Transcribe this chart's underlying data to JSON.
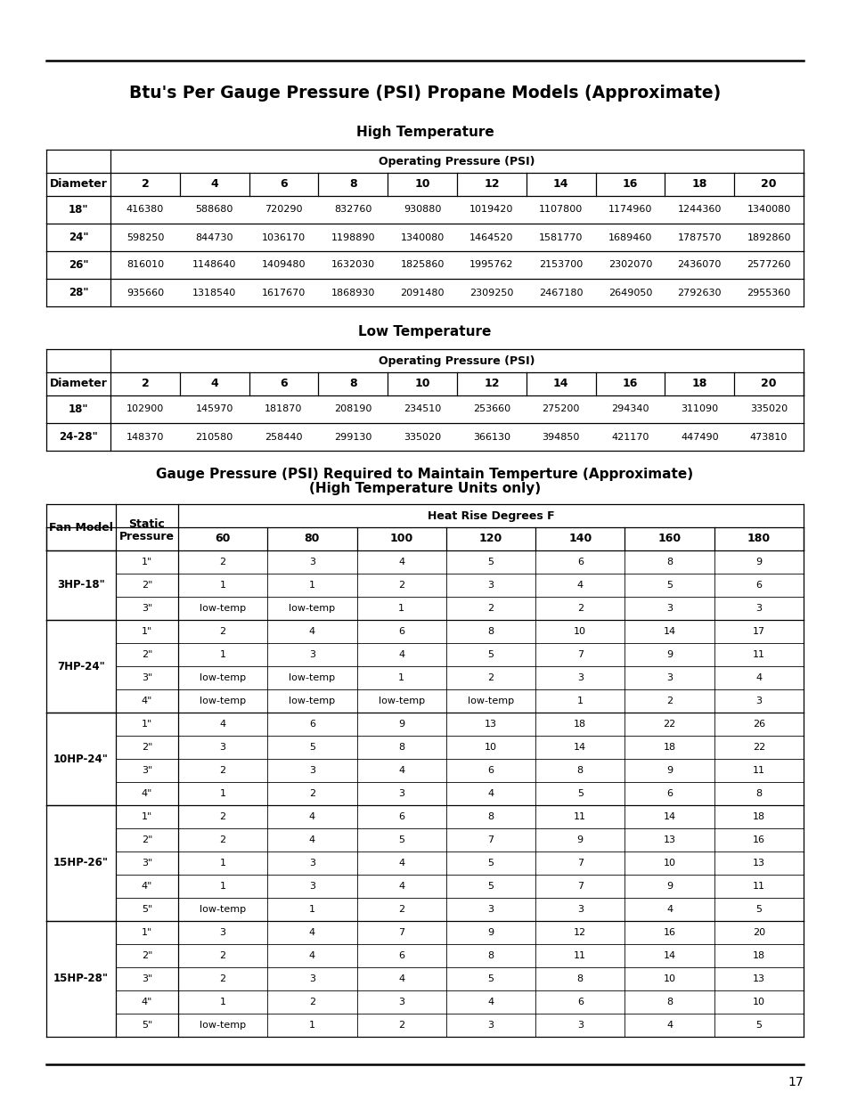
{
  "title": "Btu's Per Gauge Pressure (PSI) Propane Models (Approximate)",
  "section1_title": "High Temperature",
  "table1_header1": "Operating Pressure (PSI)",
  "table1_col0": "Diameter",
  "table1_cols": [
    "2",
    "4",
    "6",
    "8",
    "10",
    "12",
    "14",
    "16",
    "18",
    "20"
  ],
  "table1_rows": [
    [
      "18\"",
      "416380",
      "588680",
      "720290",
      "832760",
      "930880",
      "1019420",
      "1107800",
      "1174960",
      "1244360",
      "1340080"
    ],
    [
      "24\"",
      "598250",
      "844730",
      "1036170",
      "1198890",
      "1340080",
      "1464520",
      "1581770",
      "1689460",
      "1787570",
      "1892860"
    ],
    [
      "26\"",
      "816010",
      "1148640",
      "1409480",
      "1632030",
      "1825860",
      "1995762",
      "2153700",
      "2302070",
      "2436070",
      "2577260"
    ],
    [
      "28\"",
      "935660",
      "1318540",
      "1617670",
      "1868930",
      "2091480",
      "2309250",
      "2467180",
      "2649050",
      "2792630",
      "2955360"
    ]
  ],
  "section2_title": "Low Temperature",
  "table2_header1": "Operating Pressure (PSI)",
  "table2_col0": "Diameter",
  "table2_cols": [
    "2",
    "4",
    "6",
    "8",
    "10",
    "12",
    "14",
    "16",
    "18",
    "20"
  ],
  "table2_rows": [
    [
      "18\"",
      "102900",
      "145970",
      "181870",
      "208190",
      "234510",
      "253660",
      "275200",
      "294340",
      "311090",
      "335020"
    ],
    [
      "24-28\"",
      "148370",
      "210580",
      "258440",
      "299130",
      "335020",
      "366130",
      "394850",
      "421170",
      "447490",
      "473810"
    ]
  ],
  "section3_title_line1": "Gauge Pressure (PSI) Required to Maintain Temperture (Approximate)",
  "section3_title_line2": "(High Temperature Units only)",
  "table3_col0": "Fan Model",
  "table3_col1_line1": "Static",
  "table3_col1_line2": "Pressure",
  "table3_header2": "Heat Rise Degrees F",
  "table3_cols": [
    "60",
    "80",
    "100",
    "120",
    "140",
    "160",
    "180"
  ],
  "table3_groups": [
    {
      "name": "3HP-18\"",
      "rows": [
        [
          "1\"",
          "2",
          "3",
          "4",
          "5",
          "6",
          "8",
          "9"
        ],
        [
          "2\"",
          "1",
          "1",
          "2",
          "3",
          "4",
          "5",
          "6"
        ],
        [
          "3\"",
          "low-temp",
          "low-temp",
          "1",
          "2",
          "2",
          "3",
          "3"
        ]
      ]
    },
    {
      "name": "7HP-24\"",
      "rows": [
        [
          "1\"",
          "2",
          "4",
          "6",
          "8",
          "10",
          "14",
          "17"
        ],
        [
          "2\"",
          "1",
          "3",
          "4",
          "5",
          "7",
          "9",
          "11"
        ],
        [
          "3\"",
          "low-temp",
          "low-temp",
          "1",
          "2",
          "3",
          "3",
          "4"
        ],
        [
          "4\"",
          "low-temp",
          "low-temp",
          "low-temp",
          "low-temp",
          "1",
          "2",
          "3"
        ]
      ]
    },
    {
      "name": "10HP-24\"",
      "rows": [
        [
          "1\"",
          "4",
          "6",
          "9",
          "13",
          "18",
          "22",
          "26"
        ],
        [
          "2\"",
          "3",
          "5",
          "8",
          "10",
          "14",
          "18",
          "22"
        ],
        [
          "3\"",
          "2",
          "3",
          "4",
          "6",
          "8",
          "9",
          "11"
        ],
        [
          "4\"",
          "1",
          "2",
          "3",
          "4",
          "5",
          "6",
          "8"
        ]
      ]
    },
    {
      "name": "15HP-26\"",
      "rows": [
        [
          "1\"",
          "2",
          "4",
          "6",
          "8",
          "11",
          "14",
          "18"
        ],
        [
          "2\"",
          "2",
          "4",
          "5",
          "7",
          "9",
          "13",
          "16"
        ],
        [
          "3\"",
          "1",
          "3",
          "4",
          "5",
          "7",
          "10",
          "13"
        ],
        [
          "4\"",
          "1",
          "3",
          "4",
          "5",
          "7",
          "9",
          "11"
        ],
        [
          "5\"",
          "low-temp",
          "1",
          "2",
          "3",
          "3",
          "4",
          "5"
        ]
      ]
    },
    {
      "name": "15HP-28\"",
      "rows": [
        [
          "1\"",
          "3",
          "4",
          "7",
          "9",
          "12",
          "16",
          "20"
        ],
        [
          "2\"",
          "2",
          "4",
          "6",
          "8",
          "11",
          "14",
          "18"
        ],
        [
          "3\"",
          "2",
          "3",
          "4",
          "5",
          "8",
          "10",
          "13"
        ],
        [
          "4\"",
          "1",
          "2",
          "3",
          "4",
          "6",
          "8",
          "10"
        ],
        [
          "5\"",
          "low-temp",
          "1",
          "2",
          "3",
          "3",
          "4",
          "5"
        ]
      ]
    }
  ],
  "page_number": "17"
}
